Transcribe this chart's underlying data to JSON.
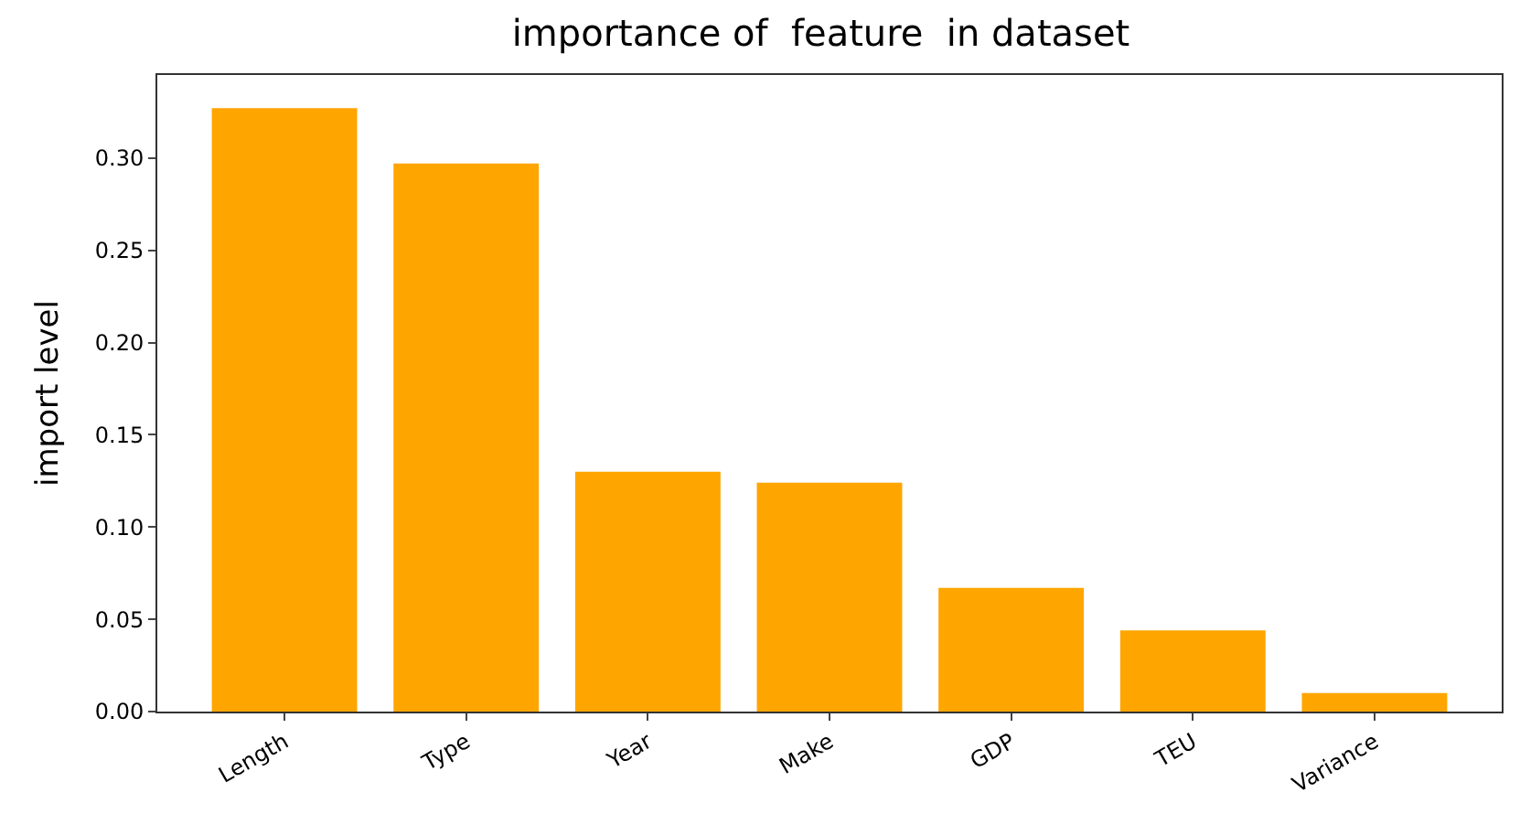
{
  "chart_data": {
    "type": "bar",
    "title": "importance of  feature  in dataset",
    "ylabel": "import level",
    "categories": [
      "Length",
      "Type",
      "Year",
      "Make",
      "GDP",
      "TEU",
      "Variance"
    ],
    "values": [
      0.327,
      0.297,
      0.13,
      0.124,
      0.067,
      0.044,
      0.01
    ],
    "color": "#ffa500",
    "ylim": [
      0,
      0.345
    ],
    "yticks": [
      {
        "value": 0,
        "label": "0.00"
      },
      {
        "value": 0.05,
        "label": "0.05"
      },
      {
        "value": 0.1,
        "label": "0.10"
      },
      {
        "value": 0.15,
        "label": "0.15"
      },
      {
        "value": 0.2,
        "label": "0.20"
      },
      {
        "value": 0.25,
        "label": "0.25"
      },
      {
        "value": 0.3,
        "label": "0.30"
      }
    ]
  }
}
